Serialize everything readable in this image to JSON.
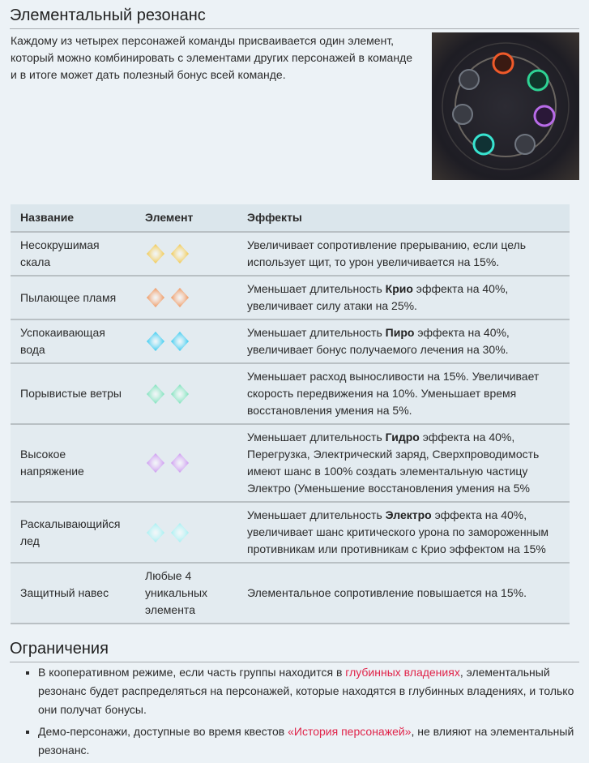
{
  "title": "Элементальный резонанс",
  "intro": "Каждому из четырех персонажей команды присваивается один элемент, который можно комбинировать с элементами других персонажей в команде и в итоге может дать полезный бонус всей команде.",
  "table": {
    "headers": [
      "Название",
      "Элемент",
      "Эффекты"
    ],
    "rows": [
      {
        "name": "Несокрушимая скала",
        "element_icon": "geo-icon",
        "color": "#f2c33a",
        "effect": [
          "Увеличивает сопротивление прерыванию, если цель использует щит, то урон увеличивается на 15%.",
          "",
          ""
        ]
      },
      {
        "name": "Пылающее пламя",
        "element_icon": "pyro-icon",
        "color": "#f08a4a",
        "effect": [
          "Уменьшает длительность ",
          "Крио",
          " эффекта на 40%, увеличивает силу атаки на 25%."
        ]
      },
      {
        "name": "Успокаивающая вода",
        "element_icon": "hydro-icon",
        "color": "#22c6f0",
        "effect": [
          "Уменьшает длительность ",
          "Пиро",
          " эффекта на 40%, увеличивает бонус получаемого лечения на 30%."
        ]
      },
      {
        "name": "Порывистые ветры",
        "element_icon": "anemo-icon",
        "color": "#6fe0b4",
        "effect": [
          "Уменьшает расход выносливости на 15%. Увеличивает скорость передвижения на 10%. Уменьшает время восстановления умения на 5%.",
          "",
          ""
        ]
      },
      {
        "name": "Высокое напряжение",
        "element_icon": "electro-icon",
        "color": "#c98ef0",
        "effect": [
          "Уменьшает длительность ",
          "Гидро",
          " эффекта на 40%, Перегрузка, Электрический заряд, Сверхпроводимость имеют шанс в 100% создать элементальную частицу Электро (Уменьшение восстановления умения на 5%"
        ]
      },
      {
        "name": "Раскалывающийся лед",
        "element_icon": "cryo-icon",
        "color": "#9cf0f2",
        "effect": [
          "Уменьшает длительность ",
          "Электро",
          " эффекта на 40%, увеличивает шанс критического урона по замороженным противникам или противникам с Крио эффектом на 15%"
        ]
      },
      {
        "name": "Защитный навес",
        "element_text": "Любые 4 уникальных элемента",
        "effect": [
          "Элементальное сопротивление повышается на 15%.",
          "",
          ""
        ]
      }
    ]
  },
  "limits": {
    "title": "Ограничения",
    "items": [
      {
        "before": "В кооперативном режиме, если часть группы находится в ",
        "link": "глубинных владениях",
        "after": ", элементальный резонанс будет распределяться на персонажей, которые находятся в глубинных владениях, и только они получат бонусы."
      },
      {
        "before": "Демо-персонажи, доступные во время квестов ",
        "link": "«История персонажей»",
        "after": ", не влияют на элементальный резонанс."
      }
    ]
  }
}
